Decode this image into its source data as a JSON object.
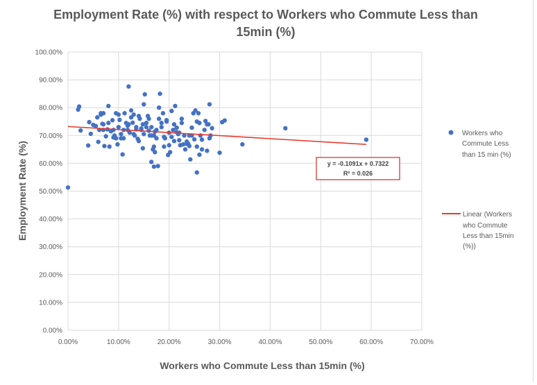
{
  "chart_data": {
    "type": "scatter",
    "title_line1": "Employment Rate (%) with respect to Workers who Commute Less than",
    "title_line2": "15min (%)",
    "xlabel": "Workers who Commute Less than 15min (%)",
    "ylabel": "Employment Rate (%)",
    "xlim": [
      0,
      0.7
    ],
    "ylim": [
      0,
      1.0
    ],
    "x_ticks": [
      0,
      0.1,
      0.2,
      0.3,
      0.4,
      0.5,
      0.6,
      0.7
    ],
    "x_tick_labels": [
      "0.00%",
      "10.00%",
      "20.00%",
      "30.00%",
      "40.00%",
      "50.00%",
      "60.00%",
      "70.00%"
    ],
    "y_ticks": [
      0,
      0.1,
      0.2,
      0.3,
      0.4,
      0.5,
      0.6,
      0.7,
      0.8,
      0.9,
      1.0
    ],
    "y_tick_labels": [
      "0.00%",
      "10.00%",
      "20.00%",
      "30.00%",
      "40.00%",
      "50.00%",
      "60.00%",
      "70.00%",
      "80.00%",
      "90.00%",
      "100.00%"
    ],
    "grid": true,
    "legend_position": "right",
    "series": [
      {
        "name": "Workers who Commute Less than 15 min (%)",
        "legend_lines": [
          "Workers who",
          "Commute Less",
          "than 15 min (%)"
        ],
        "color": "#4472C4",
        "x": [
          0.0,
          0.02,
          0.022,
          0.025,
          0.04,
          0.042,
          0.045,
          0.05,
          0.055,
          0.058,
          0.06,
          0.062,
          0.065,
          0.068,
          0.07,
          0.072,
          0.075,
          0.078,
          0.08,
          0.082,
          0.085,
          0.088,
          0.09,
          0.092,
          0.095,
          0.098,
          0.1,
          0.102,
          0.105,
          0.108,
          0.11,
          0.112,
          0.115,
          0.118,
          0.12,
          0.122,
          0.125,
          0.128,
          0.13,
          0.132,
          0.135,
          0.138,
          0.14,
          0.142,
          0.145,
          0.148,
          0.15,
          0.152,
          0.155,
          0.158,
          0.16,
          0.162,
          0.165,
          0.168,
          0.17,
          0.172,
          0.175,
          0.178,
          0.18,
          0.182,
          0.185,
          0.188,
          0.19,
          0.192,
          0.195,
          0.198,
          0.2,
          0.202,
          0.205,
          0.208,
          0.21,
          0.212,
          0.215,
          0.218,
          0.22,
          0.222,
          0.225,
          0.228,
          0.23,
          0.232,
          0.235,
          0.238,
          0.24,
          0.242,
          0.245,
          0.248,
          0.25,
          0.252,
          0.255,
          0.258,
          0.26,
          0.262,
          0.265,
          0.27,
          0.272,
          0.275,
          0.278,
          0.28,
          0.282,
          0.285,
          0.3,
          0.305,
          0.31,
          0.345,
          0.43,
          0.59,
          0.065,
          0.09,
          0.1,
          0.118,
          0.13,
          0.148,
          0.16,
          0.172,
          0.19,
          0.2,
          0.215,
          0.235,
          0.255,
          0.08,
          0.11,
          0.14,
          0.165,
          0.185,
          0.21,
          0.245,
          0.265,
          0.12,
          0.15,
          0.175,
          0.095,
          0.135,
          0.155,
          0.17,
          0.205,
          0.225,
          0.26,
          0.07,
          0.1,
          0.125,
          0.145,
          0.165,
          0.195,
          0.22,
          0.24,
          0.275,
          0.28,
          0.07,
          0.105,
          0.17,
          0.18,
          0.255
        ],
        "y": [
          0.513,
          0.793,
          0.804,
          0.718,
          0.664,
          0.748,
          0.706,
          0.738,
          0.734,
          0.765,
          0.677,
          0.72,
          0.775,
          0.742,
          0.78,
          0.662,
          0.697,
          0.722,
          0.806,
          0.66,
          0.715,
          0.755,
          0.693,
          0.7,
          0.78,
          0.668,
          0.73,
          0.756,
          0.69,
          0.632,
          0.72,
          0.78,
          0.745,
          0.735,
          0.876,
          0.71,
          0.765,
          0.746,
          0.775,
          0.7,
          0.722,
          0.688,
          0.68,
          0.76,
          0.725,
          0.654,
          0.812,
          0.848,
          0.73,
          0.77,
          0.717,
          0.7,
          0.605,
          0.65,
          0.588,
          0.64,
          0.69,
          0.59,
          0.76,
          0.85,
          0.73,
          0.78,
          0.66,
          0.69,
          0.755,
          0.63,
          0.71,
          0.64,
          0.695,
          0.72,
          0.74,
          0.806,
          0.728,
          0.705,
          0.683,
          0.665,
          0.745,
          0.668,
          0.7,
          0.65,
          0.678,
          0.67,
          0.662,
          0.614,
          0.728,
          0.78,
          0.686,
          0.79,
          0.567,
          0.78,
          0.631,
          0.7,
          0.65,
          0.72,
          0.752,
          0.645,
          0.74,
          0.812,
          0.7,
          0.726,
          0.638,
          0.748,
          0.754,
          0.668,
          0.726,
          0.685,
          0.78,
          0.72,
          0.73,
          0.72,
          0.705,
          0.74,
          0.76,
          0.714,
          0.695,
          0.665,
          0.712,
          0.67,
          0.66,
          0.745,
          0.69,
          0.77,
          0.7,
          0.745,
          0.68,
          0.7,
          0.685,
          0.74,
          0.705,
          0.72,
          0.69,
          0.73,
          0.745,
          0.7,
          0.788,
          0.76,
          0.745,
          0.74,
          0.775,
          0.79,
          0.72,
          0.73,
          0.75,
          0.71,
          0.7,
          0.74,
          0.69,
          0.72,
          0.705,
          0.66,
          0.8,
          0.75
        ]
      },
      {
        "name": "Linear (Workers who Commute Less than 15min (%))",
        "legend_lines": [
          "Linear (Workers",
          "who Commute",
          "Less than 15min",
          "(%))"
        ],
        "color": "#E8392B",
        "type": "trendline",
        "slope": -0.1091,
        "intercept": 0.7322,
        "x_range": [
          0,
          0.59
        ]
      }
    ],
    "annotation": {
      "equation": "y = -0.1091x + 0.7322",
      "r_squared": "R² = 0.026",
      "border_color": "#C00000"
    },
    "colors": {
      "grid": "#D9D9D9",
      "title": "#595959",
      "axis_text": "#595959"
    }
  }
}
